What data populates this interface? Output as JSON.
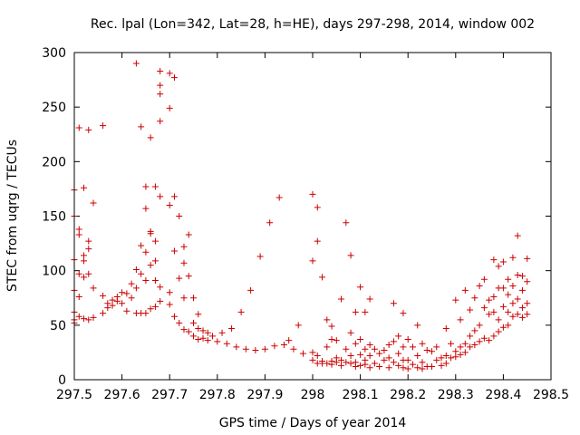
{
  "chart_data": {
    "type": "scatter",
    "title": "Rec. lpal (Lon=342, Lat=28, h=HE), days 297-298, 2014, window 002",
    "xlabel": "GPS time / Days of year 2014",
    "ylabel": "STEC from uqrg / TECUs",
    "xlim": [
      297.5,
      298.5
    ],
    "ylim": [
      0,
      300
    ],
    "x_ticks": [
      297.5,
      297.6,
      297.7,
      297.8,
      297.9,
      298,
      298.1,
      298.2,
      298.3,
      298.4,
      298.5
    ],
    "x_tick_labels": [
      "297.5",
      "297.6",
      "297.7",
      "297.8",
      "297.9",
      "298",
      "298.1",
      "298.2",
      "298.3",
      "298.4",
      "298.5"
    ],
    "y_ticks": [
      0,
      50,
      100,
      150,
      200,
      250,
      300
    ],
    "y_tick_labels": [
      "0",
      "50",
      "100",
      "150",
      "200",
      "250",
      "300"
    ],
    "grid": false,
    "legend": "none",
    "marker": "plus",
    "color": "#cc0000",
    "points": [
      [
        297.5,
        174
      ],
      [
        297.5,
        150
      ],
      [
        297.5,
        110
      ],
      [
        297.5,
        82
      ],
      [
        297.5,
        62
      ],
      [
        297.5,
        55
      ],
      [
        297.5,
        52
      ],
      [
        297.51,
        231
      ],
      [
        297.51,
        138
      ],
      [
        297.51,
        133
      ],
      [
        297.51,
        97
      ],
      [
        297.51,
        76
      ],
      [
        297.51,
        58
      ],
      [
        297.52,
        176
      ],
      [
        297.52,
        114
      ],
      [
        297.52,
        109
      ],
      [
        297.52,
        94
      ],
      [
        297.52,
        56
      ],
      [
        297.53,
        229
      ],
      [
        297.53,
        127
      ],
      [
        297.53,
        120
      ],
      [
        297.53,
        97
      ],
      [
        297.53,
        55
      ],
      [
        297.54,
        162
      ],
      [
        297.54,
        84
      ],
      [
        297.54,
        57
      ],
      [
        297.56,
        233
      ],
      [
        297.56,
        77
      ],
      [
        297.56,
        61
      ],
      [
        297.57,
        70
      ],
      [
        297.57,
        66
      ],
      [
        297.58,
        73
      ],
      [
        297.58,
        68
      ],
      [
        297.59,
        76
      ],
      [
        297.59,
        72
      ],
      [
        297.6,
        80
      ],
      [
        297.6,
        70
      ],
      [
        297.61,
        79
      ],
      [
        297.61,
        63
      ],
      [
        297.62,
        88
      ],
      [
        297.62,
        75
      ],
      [
        297.63,
        290
      ],
      [
        297.63,
        101
      ],
      [
        297.63,
        84
      ],
      [
        297.63,
        61
      ],
      [
        297.64,
        232
      ],
      [
        297.64,
        123
      ],
      [
        297.64,
        97
      ],
      [
        297.64,
        61
      ],
      [
        297.65,
        177
      ],
      [
        297.65,
        157
      ],
      [
        297.65,
        117
      ],
      [
        297.65,
        91
      ],
      [
        297.65,
        61
      ],
      [
        297.66,
        222
      ],
      [
        297.66,
        136
      ],
      [
        297.66,
        134
      ],
      [
        297.66,
        105
      ],
      [
        297.66,
        65
      ],
      [
        297.67,
        177
      ],
      [
        297.67,
        127
      ],
      [
        297.67,
        109
      ],
      [
        297.67,
        91
      ],
      [
        297.67,
        67
      ],
      [
        297.68,
        283
      ],
      [
        297.68,
        270
      ],
      [
        297.68,
        237
      ],
      [
        297.68,
        262
      ],
      [
        297.68,
        168
      ],
      [
        297.68,
        85
      ],
      [
        297.68,
        72
      ],
      [
        297.7,
        281
      ],
      [
        297.7,
        249
      ],
      [
        297.7,
        160
      ],
      [
        297.7,
        80
      ],
      [
        297.7,
        69
      ],
      [
        297.71,
        277
      ],
      [
        297.71,
        168
      ],
      [
        297.71,
        118
      ],
      [
        297.71,
        58
      ],
      [
        297.72,
        150
      ],
      [
        297.72,
        93
      ],
      [
        297.72,
        52
      ],
      [
        297.73,
        122
      ],
      [
        297.73,
        107
      ],
      [
        297.73,
        75
      ],
      [
        297.73,
        46
      ],
      [
        297.74,
        133
      ],
      [
        297.74,
        95
      ],
      [
        297.74,
        44
      ],
      [
        297.75,
        75
      ],
      [
        297.75,
        52
      ],
      [
        297.75,
        40
      ],
      [
        297.76,
        60
      ],
      [
        297.76,
        47
      ],
      [
        297.76,
        37
      ],
      [
        297.77,
        45
      ],
      [
        297.77,
        38
      ],
      [
        297.78,
        43
      ],
      [
        297.78,
        36
      ],
      [
        297.79,
        40
      ],
      [
        297.8,
        35
      ],
      [
        297.81,
        43
      ],
      [
        297.82,
        33
      ],
      [
        297.83,
        47
      ],
      [
        297.84,
        30
      ],
      [
        297.85,
        62
      ],
      [
        297.86,
        28
      ],
      [
        297.87,
        82
      ],
      [
        297.88,
        27
      ],
      [
        297.89,
        113
      ],
      [
        297.9,
        28
      ],
      [
        297.91,
        144
      ],
      [
        297.92,
        31
      ],
      [
        297.93,
        167
      ],
      [
        297.94,
        32
      ],
      [
        297.95,
        36
      ],
      [
        297.96,
        28
      ],
      [
        297.97,
        50
      ],
      [
        297.98,
        24
      ],
      [
        298.0,
        170
      ],
      [
        298.0,
        109
      ],
      [
        298.0,
        25
      ],
      [
        298.0,
        18
      ],
      [
        298.01,
        158
      ],
      [
        298.01,
        127
      ],
      [
        298.01,
        22
      ],
      [
        298.01,
        15
      ],
      [
        298.02,
        94
      ],
      [
        298.02,
        17
      ],
      [
        298.02,
        15
      ],
      [
        298.03,
        55
      ],
      [
        298.03,
        30
      ],
      [
        298.03,
        15
      ],
      [
        298.04,
        49
      ],
      [
        298.04,
        37
      ],
      [
        298.04,
        17
      ],
      [
        298.04,
        14
      ],
      [
        298.05,
        36
      ],
      [
        298.05,
        20
      ],
      [
        298.05,
        16
      ],
      [
        298.06,
        74
      ],
      [
        298.06,
        18
      ],
      [
        298.06,
        13
      ],
      [
        298.07,
        144
      ],
      [
        298.07,
        28
      ],
      [
        298.07,
        16
      ],
      [
        298.08,
        114
      ],
      [
        298.08,
        43
      ],
      [
        298.08,
        22
      ],
      [
        298.08,
        15
      ],
      [
        298.09,
        62
      ],
      [
        298.09,
        33
      ],
      [
        298.09,
        16
      ],
      [
        298.09,
        12
      ],
      [
        298.1,
        85
      ],
      [
        298.1,
        37
      ],
      [
        298.1,
        23
      ],
      [
        298.1,
        13
      ],
      [
        298.11,
        62
      ],
      [
        298.11,
        28
      ],
      [
        298.11,
        18
      ],
      [
        298.11,
        14
      ],
      [
        298.12,
        74
      ],
      [
        298.12,
        32
      ],
      [
        298.12,
        22
      ],
      [
        298.12,
        11
      ],
      [
        298.13,
        28
      ],
      [
        298.13,
        15
      ],
      [
        298.14,
        24
      ],
      [
        298.14,
        12
      ],
      [
        298.15,
        27
      ],
      [
        298.15,
        18
      ],
      [
        298.16,
        32
      ],
      [
        298.16,
        20
      ],
      [
        298.16,
        11
      ],
      [
        298.17,
        70
      ],
      [
        298.17,
        35
      ],
      [
        298.17,
        16
      ],
      [
        298.18,
        40
      ],
      [
        298.18,
        24
      ],
      [
        298.18,
        13
      ],
      [
        298.19,
        61
      ],
      [
        298.19,
        30
      ],
      [
        298.19,
        18
      ],
      [
        298.19,
        11
      ],
      [
        298.2,
        37
      ],
      [
        298.2,
        18
      ],
      [
        298.2,
        10
      ],
      [
        298.21,
        30
      ],
      [
        298.21,
        14
      ],
      [
        298.22,
        50
      ],
      [
        298.22,
        22
      ],
      [
        298.22,
        11
      ],
      [
        298.23,
        33
      ],
      [
        298.23,
        16
      ],
      [
        298.23,
        10
      ],
      [
        298.24,
        27
      ],
      [
        298.24,
        12
      ],
      [
        298.25,
        26
      ],
      [
        298.25,
        12
      ],
      [
        298.26,
        30
      ],
      [
        298.26,
        18
      ],
      [
        298.27,
        20
      ],
      [
        298.27,
        13
      ],
      [
        298.28,
        47
      ],
      [
        298.28,
        22
      ],
      [
        298.28,
        15
      ],
      [
        298.29,
        33
      ],
      [
        298.29,
        20
      ],
      [
        298.3,
        73
      ],
      [
        298.3,
        26
      ],
      [
        298.3,
        21
      ],
      [
        298.31,
        55
      ],
      [
        298.31,
        30
      ],
      [
        298.31,
        23
      ],
      [
        298.32,
        82
      ],
      [
        298.32,
        33
      ],
      [
        298.32,
        25
      ],
      [
        298.33,
        64
      ],
      [
        298.33,
        40
      ],
      [
        298.33,
        30
      ],
      [
        298.34,
        75
      ],
      [
        298.34,
        45
      ],
      [
        298.34,
        32
      ],
      [
        298.35,
        86
      ],
      [
        298.35,
        50
      ],
      [
        298.35,
        35
      ],
      [
        298.36,
        92
      ],
      [
        298.36,
        66
      ],
      [
        298.36,
        38
      ],
      [
        298.37,
        73
      ],
      [
        298.37,
        60
      ],
      [
        298.37,
        36
      ],
      [
        298.38,
        110
      ],
      [
        298.38,
        76
      ],
      [
        298.38,
        62
      ],
      [
        298.38,
        40
      ],
      [
        298.39,
        104
      ],
      [
        298.39,
        84
      ],
      [
        298.39,
        55
      ],
      [
        298.39,
        44
      ],
      [
        298.4,
        108
      ],
      [
        298.4,
        84
      ],
      [
        298.4,
        67
      ],
      [
        298.4,
        48
      ],
      [
        298.41,
        92
      ],
      [
        298.41,
        78
      ],
      [
        298.41,
        62
      ],
      [
        298.41,
        50
      ],
      [
        298.42,
        112
      ],
      [
        298.42,
        86
      ],
      [
        298.42,
        70
      ],
      [
        298.42,
        58
      ],
      [
        298.43,
        132
      ],
      [
        298.43,
        96
      ],
      [
        298.43,
        74
      ],
      [
        298.43,
        60
      ],
      [
        298.44,
        95
      ],
      [
        298.44,
        82
      ],
      [
        298.44,
        66
      ],
      [
        298.44,
        57
      ],
      [
        298.45,
        111
      ],
      [
        298.45,
        90
      ],
      [
        298.45,
        70
      ],
      [
        298.45,
        60
      ]
    ]
  }
}
